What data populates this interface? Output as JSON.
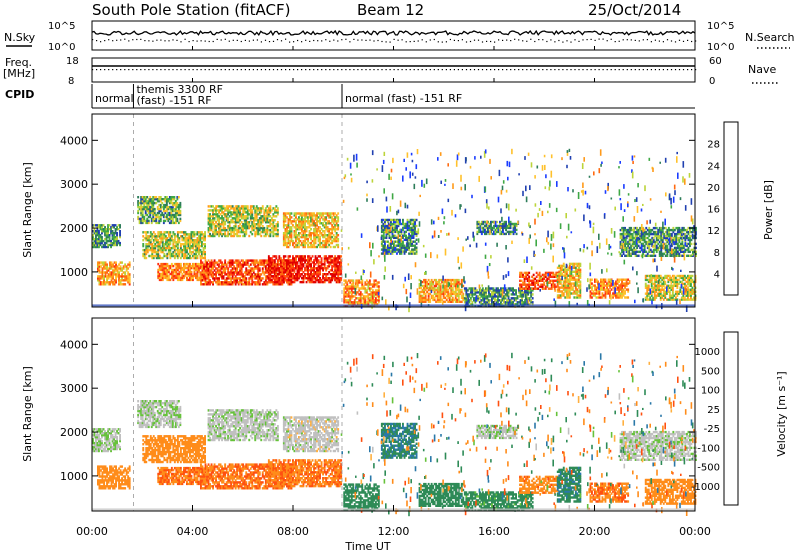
{
  "header": {
    "station": "South Pole Station (fitACF)",
    "beam": "Beam 12",
    "date": "25/Oct/2014"
  },
  "sky_panel": {
    "left_label": "N.Sky",
    "right_label": "N.Search",
    "ticks_left": [
      "10^5",
      "10^0"
    ],
    "ticks_right": [
      "10^5",
      "10^0"
    ]
  },
  "freq_panel": {
    "left_label_1": "Freq.",
    "left_label_2": "[MHz]",
    "right_label": "Nave",
    "ticks_left": [
      "18",
      "8"
    ],
    "ticks_right": [
      "60",
      "0"
    ]
  },
  "cpid": {
    "label": "CPID",
    "segments": [
      {
        "start_hr": 0.0,
        "line1": "normal",
        "line2": ""
      },
      {
        "start_hr": 1.65,
        "line1": "themis 3300 RF",
        "line2": "(fast) -151 RF"
      },
      {
        "start_hr": 9.95,
        "line1": "normal (fast) -151 RF",
        "line2": ""
      }
    ]
  },
  "power_panel": {
    "ylabel": "Slant Range [km]",
    "yticks": [
      "1000",
      "2000",
      "3000",
      "4000"
    ],
    "colorbar_label": "Power [dB]",
    "colorbar_ticks": [
      "4",
      "8",
      "12",
      "16",
      "20",
      "24",
      "28"
    ],
    "colors": [
      "#1a3cff",
      "#2040b0",
      "#2e7d5a",
      "#3fa845",
      "#bcd43a",
      "#ffc12b",
      "#ff9a1a",
      "#ff6a10",
      "#ff3010",
      "#e00000"
    ]
  },
  "velocity_panel": {
    "ylabel": "Slant Range [km]",
    "yticks": [
      "1000",
      "2000",
      "3000",
      "4000"
    ],
    "colorbar_label": "Velocity [m s⁻¹]",
    "colorbar_ticks": [
      "1000",
      "500",
      "100",
      "25",
      "-25",
      "-100",
      "-500",
      "-1000"
    ],
    "colors": [
      "#2040c0",
      "#2a78a8",
      "#2e8b57",
      "#66c23a",
      "#c0c0c0",
      "#ffb040",
      "#ff8c1a",
      "#ff5010",
      "#e00000"
    ]
  },
  "xaxis": {
    "label": "Time UT",
    "ticks": [
      "00:00",
      "04:00",
      "08:00",
      "12:00",
      "16:00",
      "20:00",
      "00:00"
    ]
  },
  "chart_data": {
    "type": "heatmap",
    "title": "South Pole Station (fitACF)  Beam 12  25/Oct/2014",
    "xlabel": "Time UT",
    "ylabel": "Slant Range [km]",
    "xlim_hours": [
      0,
      24
    ],
    "ylim_km": [
      200,
      4600
    ],
    "panels": [
      "Power [dB]",
      "Velocity [m s⁻¹]"
    ],
    "power_range_db": [
      0,
      30
    ],
    "velocity_range": [
      -1000,
      1000
    ],
    "echo_regions": [
      {
        "t0": 0.0,
        "t1": 1.1,
        "r0": 1550,
        "r1": 2050,
        "power": 9,
        "vel": 20
      },
      {
        "t0": 0.2,
        "t1": 1.5,
        "r0": 700,
        "r1": 1200,
        "power": 19,
        "vel": -280
      },
      {
        "t0": 1.8,
        "t1": 3.5,
        "r0": 2100,
        "r1": 2700,
        "power": 11,
        "vel": 15
      },
      {
        "t0": 2.0,
        "t1": 4.5,
        "r0": 1300,
        "r1": 1900,
        "power": 14,
        "vel": -320
      },
      {
        "t0": 2.6,
        "t1": 4.6,
        "r0": 800,
        "r1": 1200,
        "power": 21,
        "vel": -450
      },
      {
        "t0": 4.6,
        "t1": 7.4,
        "r0": 1800,
        "r1": 2500,
        "power": 14,
        "vel": 10
      },
      {
        "t0": 4.3,
        "t1": 8.0,
        "r0": 700,
        "r1": 1250,
        "power": 24,
        "vel": -480
      },
      {
        "t0": 7.6,
        "t1": 9.8,
        "r0": 1550,
        "r1": 2350,
        "power": 17,
        "vel": 0
      },
      {
        "t0": 7.0,
        "t1": 9.9,
        "r0": 750,
        "r1": 1350,
        "power": 27,
        "vel": -450
      },
      {
        "t0": 10.0,
        "t1": 11.4,
        "r0": 200,
        "r1": 800,
        "power": 20,
        "vel": 250
      },
      {
        "t0": 11.5,
        "t1": 12.9,
        "r0": 1400,
        "r1": 2200,
        "power": 8,
        "vel": 450
      },
      {
        "t0": 13.0,
        "t1": 14.8,
        "r0": 300,
        "r1": 800,
        "power": 19,
        "vel": 220
      },
      {
        "t0": 14.8,
        "t1": 17.5,
        "r0": 200,
        "r1": 650,
        "power": 9,
        "vel": 180
      },
      {
        "t0": 15.3,
        "t1": 16.9,
        "r0": 1850,
        "r1": 2150,
        "power": 8,
        "vel": 15
      },
      {
        "t0": 17.0,
        "t1": 18.5,
        "r0": 600,
        "r1": 1000,
        "power": 24,
        "vel": -350
      },
      {
        "t0": 18.5,
        "t1": 19.4,
        "r0": 400,
        "r1": 1200,
        "power": 17,
        "vel": 400
      },
      {
        "t0": 19.8,
        "t1": 21.3,
        "r0": 400,
        "r1": 850,
        "power": 20,
        "vel": -420
      },
      {
        "t0": 21.0,
        "t1": 24.0,
        "r0": 1350,
        "r1": 2000,
        "power": 9,
        "vel": 10
      },
      {
        "t0": 22.0,
        "t1": 24.0,
        "r0": 350,
        "r1": 900,
        "power": 15,
        "vel": -250
      }
    ]
  }
}
